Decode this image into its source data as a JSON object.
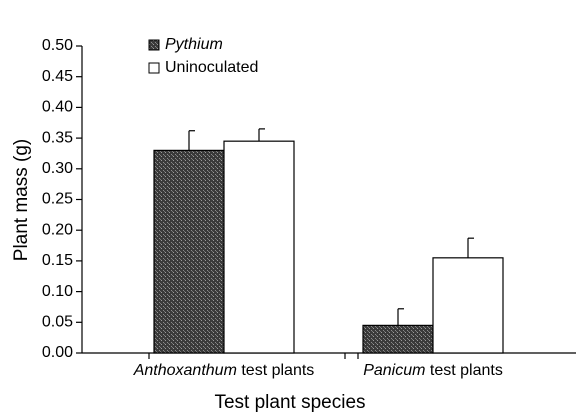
{
  "chart_data": {
    "type": "bar",
    "categories": [
      "Anthoxanthum test plants",
      "Panicum test plants"
    ],
    "series": [
      {
        "name": "Pythium",
        "color": "#4a4a4a",
        "values": [
          0.33,
          0.045
        ],
        "errors": [
          0.032,
          0.027
        ]
      },
      {
        "name": "Uninoculated",
        "color": "#ffffff",
        "values": [
          0.345,
          0.155
        ],
        "errors": [
          0.02,
          0.032
        ]
      }
    ],
    "ylim": [
      0,
      0.5
    ],
    "yticks": [
      {
        "value": 0,
        "label": "0.00"
      },
      {
        "value": 0.05,
        "label": "0.05"
      },
      {
        "value": 0.1,
        "label": "0.10"
      },
      {
        "value": 0.15,
        "label": "0.15"
      },
      {
        "value": 0.2,
        "label": "0.20"
      },
      {
        "value": 0.25,
        "label": "0.25"
      },
      {
        "value": 0.3,
        "label": "0.30"
      },
      {
        "value": 0.35,
        "label": "0.35"
      },
      {
        "value": 0.4,
        "label": "0.40"
      },
      {
        "value": 0.45,
        "label": "0.45"
      },
      {
        "value": 0.5,
        "label": "0.50"
      }
    ],
    "xlabel": "Test plant species",
    "ylabel": "Plant mass (g)",
    "legend": "upper left"
  }
}
